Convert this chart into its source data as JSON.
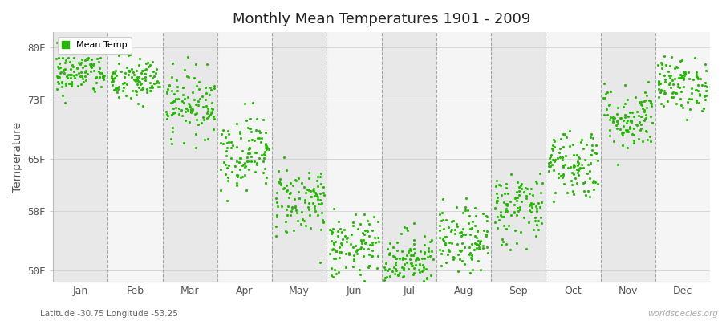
{
  "title": "Monthly Mean Temperatures 1901 - 2009",
  "ylabel": "Temperature",
  "xlabel_months": [
    "Jan",
    "Feb",
    "Mar",
    "Apr",
    "May",
    "Jun",
    "Jul",
    "Aug",
    "Sep",
    "Oct",
    "Nov",
    "Dec"
  ],
  "ytick_labels": [
    "50F",
    "58F",
    "65F",
    "73F",
    "80F"
  ],
  "ytick_values": [
    50,
    58,
    65,
    73,
    80
  ],
  "ymin": 48.5,
  "ymax": 82,
  "dot_color": "#22bb00",
  "legend_label": "Mean Temp",
  "subtitle_left": "Latitude -30.75 Longitude -53.25",
  "subtitle_right": "worldspecies.org",
  "background_color": "#ffffff",
  "band_color_odd": "#e8e8e8",
  "band_color_even": "#f5f5f5",
  "mean_temps_F": [
    76.5,
    75.5,
    72.5,
    66.0,
    59.5,
    53.0,
    51.5,
    54.0,
    58.5,
    64.5,
    70.5,
    75.0
  ],
  "std_temps_F": [
    1.5,
    1.6,
    2.2,
    2.5,
    2.4,
    2.2,
    2.0,
    2.2,
    2.5,
    2.4,
    2.2,
    1.8
  ],
  "n_years": 109,
  "seed": 42
}
